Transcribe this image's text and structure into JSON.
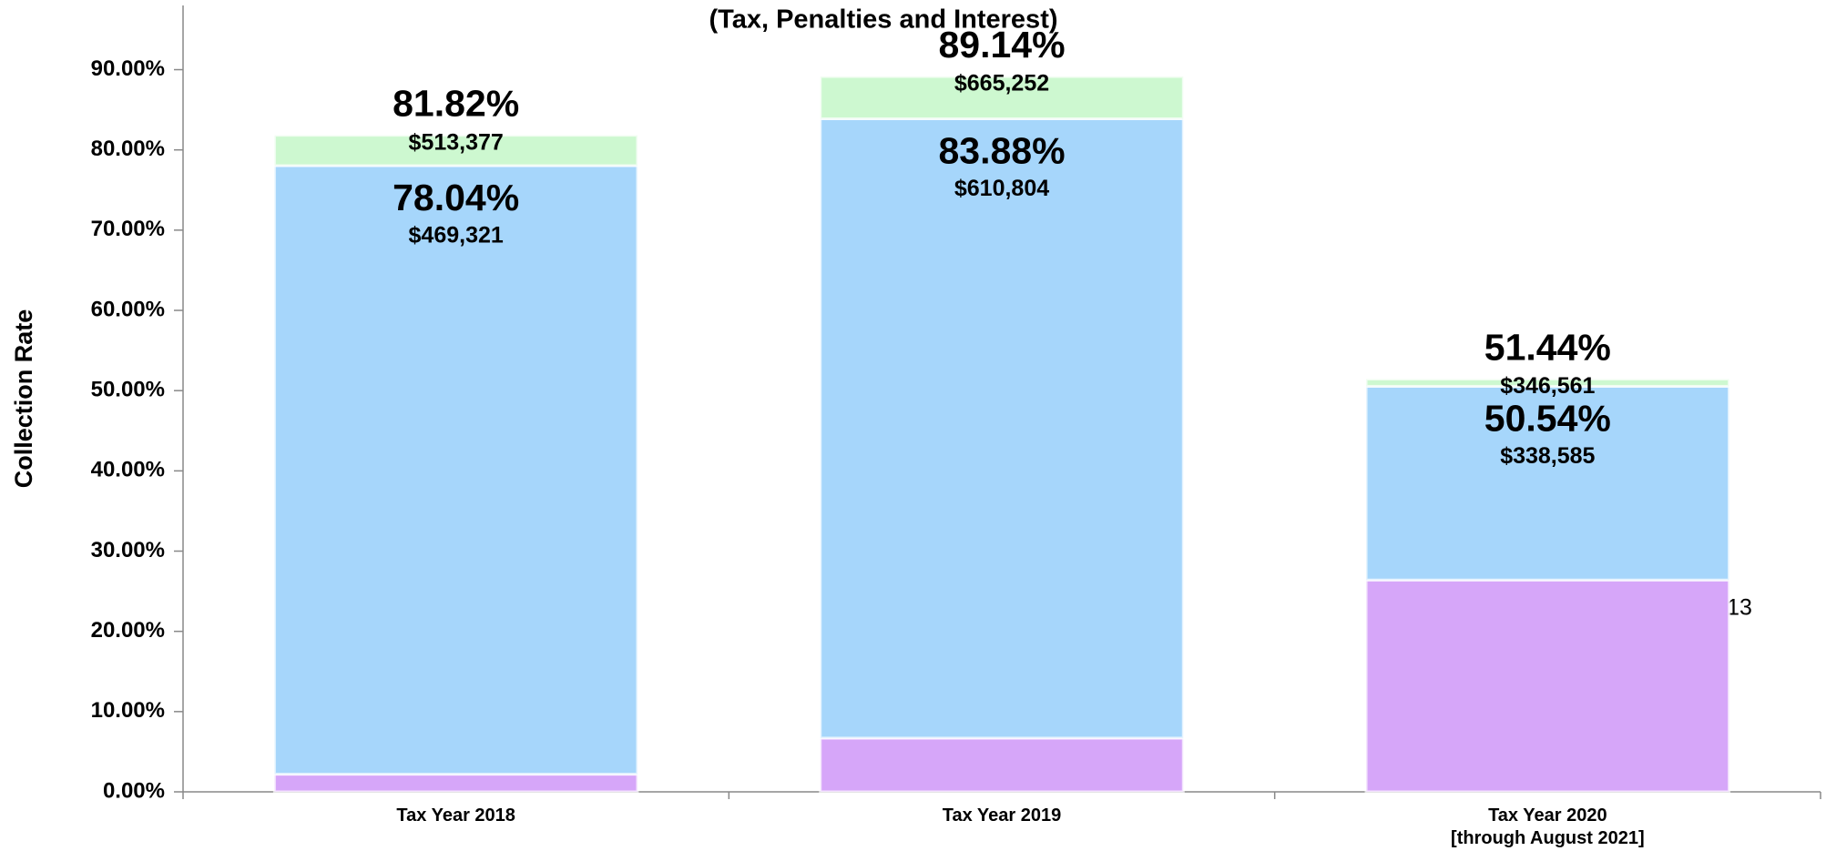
{
  "chart_data": {
    "type": "stacked_bar",
    "title": "(Tax, Penalties and Interest)",
    "y_label": "Collection Rate",
    "categories": [
      "Tax Year 2018",
      "Tax Year 2019",
      "Tax Year 2020\n[through August 2021]"
    ],
    "series": [
      {
        "color": "#d6a6f9",
        "values": [
          2.2,
          6.7,
          26.4
        ]
      },
      {
        "color": "#a6d6fb",
        "values": [
          75.84,
          77.18,
          24.14
        ]
      },
      {
        "color": "#cdf8d0",
        "values": [
          3.78,
          5.26,
          0.9
        ]
      }
    ],
    "stack_labels": [
      [
        {
          "percent": "78.04%",
          "amount": "$469,321"
        },
        {
          "percent": "81.82%",
          "amount": "$513,377"
        }
      ],
      [
        {
          "percent": "83.88%",
          "amount": "$610,804"
        },
        {
          "percent": "89.14%",
          "amount": "$665,252"
        }
      ],
      [
        {
          "percent": "50.54%",
          "amount": "$338,585"
        },
        {
          "percent": "51.44%",
          "amount": "$346,561"
        }
      ]
    ],
    "ylim": [
      0,
      98
    ],
    "yticks": [
      {
        "value": 0,
        "label": "0.00%"
      },
      {
        "value": 10,
        "label": "10.00%"
      },
      {
        "value": 20,
        "label": "20.00%"
      },
      {
        "value": 30,
        "label": "30.00%"
      },
      {
        "value": 40,
        "label": "40.00%"
      },
      {
        "value": 50,
        "label": "50.00%"
      },
      {
        "value": 60,
        "label": "60.00%"
      },
      {
        "value": 70,
        "label": "70.00%"
      },
      {
        "value": 80,
        "label": "80.00%"
      },
      {
        "value": 90,
        "label": "90.00%"
      }
    ],
    "page_number": "13"
  }
}
